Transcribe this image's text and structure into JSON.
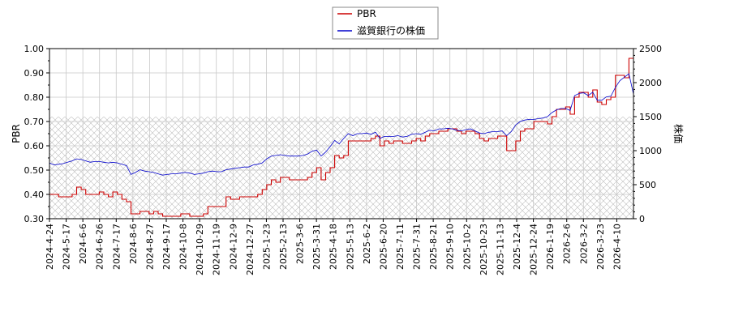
{
  "chart_data": {
    "type": "line",
    "ylabel_left": "PBR",
    "ylabel_right": "株価",
    "ylim_left": [
      0.3,
      1.0
    ],
    "ylim_right": [
      0,
      2500
    ],
    "yticks_left": [
      "0.30",
      "0.40",
      "0.50",
      "0.60",
      "0.70",
      "0.80",
      "0.90",
      "1.00"
    ],
    "yticks_right": [
      "0",
      "500",
      "1000",
      "1500",
      "2000",
      "2500"
    ],
    "xticks": [
      "2024-4-24",
      "2024-5-17",
      "2024-6-6",
      "2024-6-26",
      "2024-7-17",
      "2024-8-6",
      "2024-8-27",
      "2024-9-17",
      "2024-10-8",
      "2024-10-29",
      "2024-11-19",
      "2024-12-9",
      "2024-12-27",
      "2025-1-23",
      "2025-2-13",
      "2025-3-6",
      "2025-3-31",
      "2025-4-18",
      "2025-5-13",
      "2025-6-2",
      "2025-6-20",
      "2025-7-11",
      "2025-7-31",
      "2025-8-21",
      "2025-9-10",
      "2025-10-2",
      "2025-10-23",
      "2025-11-13",
      "2025-12-4",
      "2025-12-24",
      "2026-1-19",
      "2026-2-6",
      "2026-3-2",
      "2026-3-23",
      "2026-4-10"
    ],
    "grid": true,
    "legend_position": "top-center",
    "shaded_band_right_axis": [
      0,
      1500
    ],
    "series": [
      {
        "name": "PBR",
        "axis": "left",
        "color": "#cc0000",
        "values": [
          0.4,
          0.4,
          0.39,
          0.39,
          0.39,
          0.4,
          0.43,
          0.42,
          0.4,
          0.4,
          0.4,
          0.41,
          0.4,
          0.39,
          0.41,
          0.4,
          0.38,
          0.37,
          0.32,
          0.32,
          0.33,
          0.33,
          0.32,
          0.33,
          0.32,
          0.31,
          0.31,
          0.31,
          0.31,
          0.32,
          0.32,
          0.31,
          0.31,
          0.31,
          0.32,
          0.35,
          0.35,
          0.35,
          0.35,
          0.39,
          0.38,
          0.38,
          0.39,
          0.39,
          0.39,
          0.39,
          0.4,
          0.42,
          0.44,
          0.46,
          0.45,
          0.47,
          0.47,
          0.46,
          0.46,
          0.46,
          0.46,
          0.47,
          0.49,
          0.51,
          0.46,
          0.49,
          0.51,
          0.56,
          0.55,
          0.56,
          0.62,
          0.62,
          0.62,
          0.62,
          0.62,
          0.63,
          0.64,
          0.6,
          0.62,
          0.61,
          0.62,
          0.62,
          0.61,
          0.61,
          0.62,
          0.63,
          0.62,
          0.64,
          0.65,
          0.65,
          0.66,
          0.66,
          0.67,
          0.67,
          0.66,
          0.65,
          0.66,
          0.66,
          0.65,
          0.63,
          0.62,
          0.63,
          0.63,
          0.64,
          0.64,
          0.58,
          0.58,
          0.62,
          0.66,
          0.67,
          0.67,
          0.7,
          0.7,
          0.7,
          0.69,
          0.72,
          0.75,
          0.75,
          0.76,
          0.73,
          0.8,
          0.82,
          0.82,
          0.8,
          0.83,
          0.78,
          0.77,
          0.79,
          0.8,
          0.89,
          0.89,
          0.88,
          0.96,
          0.96
        ]
      },
      {
        "name": "滋賀銀行の株価",
        "axis": "right",
        "color": "#0000cc",
        "values": [
          820,
          790,
          800,
          810,
          830,
          850,
          880,
          870,
          850,
          830,
          840,
          840,
          830,
          820,
          830,
          820,
          800,
          780,
          650,
          680,
          720,
          700,
          690,
          680,
          660,
          640,
          650,
          660,
          660,
          670,
          680,
          670,
          650,
          660,
          670,
          690,
          700,
          690,
          690,
          720,
          730,
          740,
          750,
          760,
          760,
          790,
          800,
          820,
          880,
          920,
          930,
          940,
          930,
          920,
          920,
          920,
          930,
          950,
          990,
          1010,
          920,
          980,
          1060,
          1150,
          1100,
          1180,
          1250,
          1220,
          1250,
          1250,
          1260,
          1240,
          1270,
          1180,
          1210,
          1210,
          1210,
          1220,
          1200,
          1210,
          1240,
          1250,
          1240,
          1270,
          1300,
          1290,
          1320,
          1320,
          1330,
          1320,
          1300,
          1290,
          1310,
          1320,
          1290,
          1260,
          1250,
          1270,
          1280,
          1280,
          1290,
          1220,
          1280,
          1380,
          1430,
          1450,
          1460,
          1460,
          1470,
          1480,
          1500,
          1560,
          1600,
          1620,
          1620,
          1590,
          1810,
          1840,
          1850,
          1810,
          1860,
          1740,
          1740,
          1790,
          1800,
          1930,
          2030,
          2080,
          2130,
          1830
        ]
      }
    ]
  }
}
